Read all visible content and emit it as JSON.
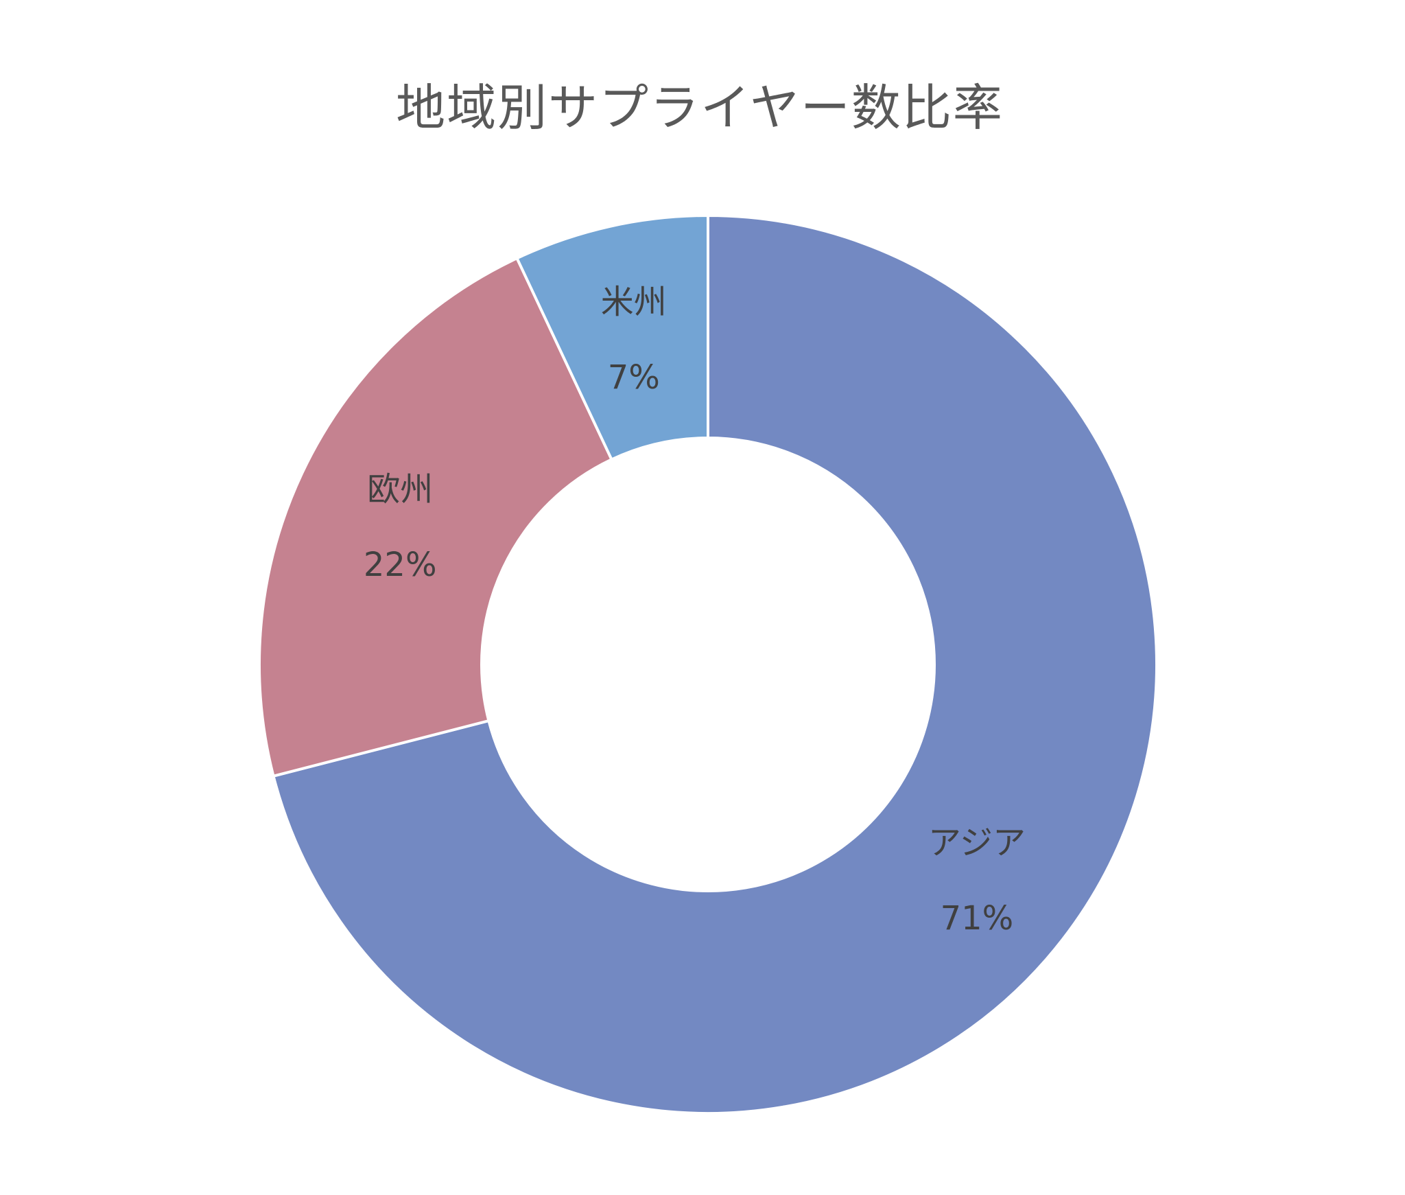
{
  "chart_data": {
    "type": "pie",
    "variant": "donut",
    "title": "地域別サプライヤー数比率",
    "start": "top",
    "direction": "clockwise",
    "slices": [
      {
        "label": "アジア",
        "value": 71,
        "display": "71%",
        "color": "#7389C2"
      },
      {
        "label": "欧州",
        "value": 22,
        "display": "22%",
        "color": "#C58290"
      },
      {
        "label": "米州",
        "value": 7,
        "display": "7%",
        "color": "#73A4D4"
      }
    ],
    "legend": "none",
    "separator_color": "#FFFFFF"
  }
}
